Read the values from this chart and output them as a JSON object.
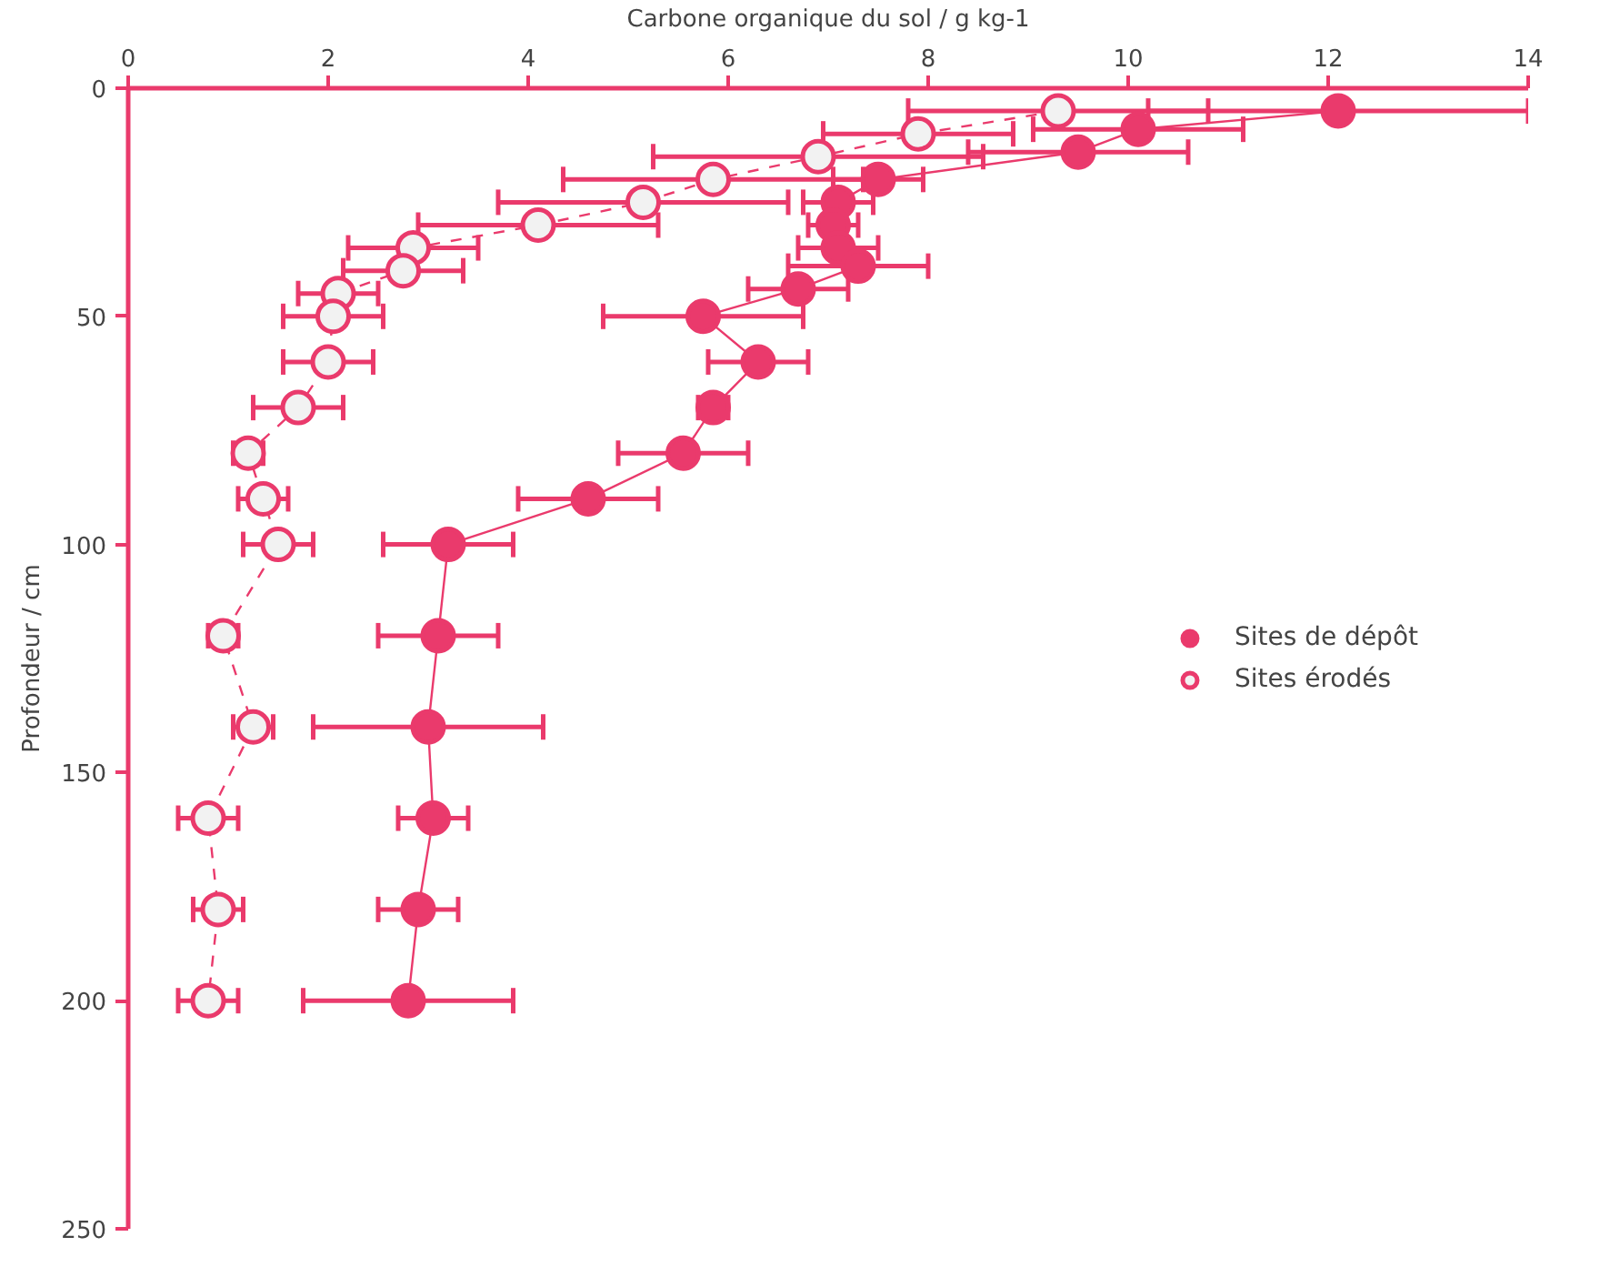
{
  "chart_data": {
    "type": "line",
    "xlabel": "Carbone organique du sol / g kg-1",
    "ylabel": "Profondeur / cm",
    "xlim": [
      0,
      14
    ],
    "xticks": [
      0,
      2,
      4,
      6,
      8,
      10,
      12,
      14
    ],
    "ylim": [
      250,
      0
    ],
    "yticks": [
      0,
      50,
      100,
      150,
      200,
      250
    ],
    "grid": false,
    "legend": "right",
    "marker": "circle",
    "series": [
      {
        "name": "Sites de dépôt",
        "color": "#ea3a6c",
        "line_style": "solid",
        "x": [
          12.1,
          10.1,
          9.5,
          7.5,
          7.1,
          7.05,
          7.1,
          7.3,
          6.7,
          5.75,
          6.3,
          5.85,
          5.55,
          4.6,
          3.2,
          3.1,
          3.0,
          3.05,
          2.9,
          2.8
        ],
        "values": [
          5,
          9,
          14,
          20,
          25,
          30,
          35,
          39,
          44,
          50,
          60,
          70,
          80,
          90,
          100,
          120,
          140,
          160,
          180,
          200
        ],
        "xerrors": [
          1.9,
          1.05,
          1.1,
          0.45,
          0.35,
          0.25,
          0.4,
          0.7,
          0.5,
          1.0,
          0.5,
          0.15,
          0.65,
          0.7,
          0.65,
          0.6,
          1.15,
          0.35,
          0.4,
          1.05
        ]
      },
      {
        "name": "Sites érodés",
        "color": "#ea3a6c",
        "line_style": "dashed",
        "x": [
          9.3,
          7.9,
          6.9,
          5.85,
          5.15,
          4.1,
          2.85,
          2.75,
          2.1,
          2.05,
          2.0,
          1.7,
          1.2,
          1.35,
          1.5,
          0.95,
          1.25,
          0.8,
          0.9,
          0.8
        ],
        "values": [
          5,
          10,
          15,
          20,
          25,
          30,
          35,
          40,
          45,
          50,
          60,
          70,
          80,
          90,
          100,
          120,
          140,
          160,
          180,
          200
        ],
        "xerrors": [
          1.5,
          0.95,
          1.65,
          1.5,
          1.45,
          1.2,
          0.65,
          0.6,
          0.4,
          0.5,
          0.45,
          0.45,
          0.15,
          0.25,
          0.35,
          0.15,
          0.2,
          0.3,
          0.25,
          0.3
        ]
      }
    ]
  }
}
